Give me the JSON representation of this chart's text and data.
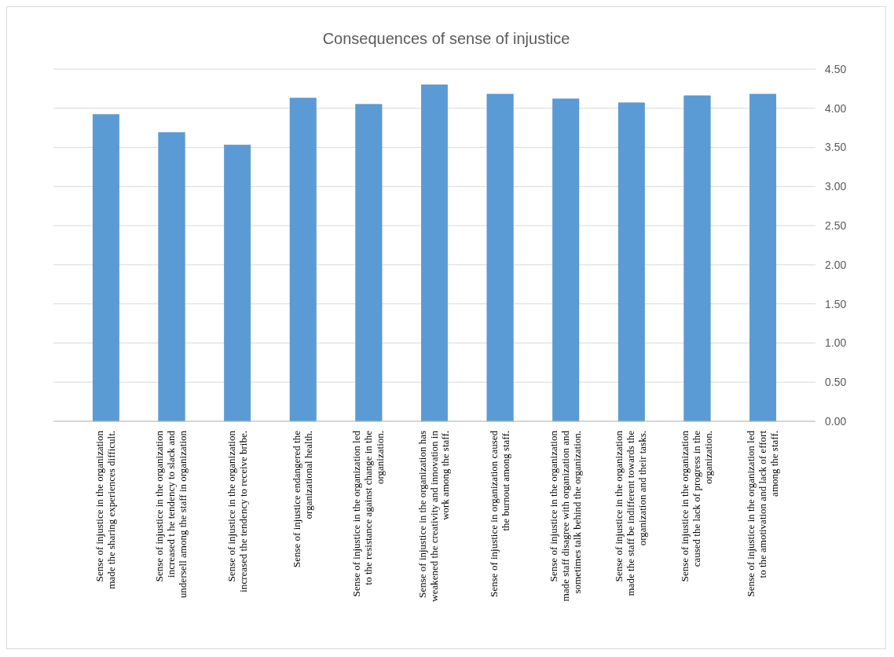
{
  "chart_data": {
    "type": "bar",
    "title": "Consequences of sense of injustice",
    "categories": [
      "Sense of injustice in the organization made the sharing experiences difficult.",
      "Sense of injustice in the organization increased t he tendency to slack and undersell among the staff in organization",
      "Sense of injustice in the organization increased the tendency to receive bribe.",
      "Sense of injustice endangered the organizational health.",
      "Sense of injustice in the organization led to the resistance against  change in the organization.",
      "Sense of injustice in the organization has weakened the creativity and innovation in work among the staff.",
      "Sense of injustice in organization caused the burnout  among staff.",
      "Sense of injustice in the organization made staff disagree with organization and sometimes talk behind the organization.",
      "Sense of injustice in the organization made the staff be indifferent towards the organization and their tasks.",
      "Sense of injustice in the organization caused the lack of progress in the organization.",
      "Sense of injustice in the organization led to the amotivation and lack of effort among the staff."
    ],
    "values": [
      3.92,
      3.69,
      3.53,
      4.13,
      4.05,
      4.3,
      4.18,
      4.12,
      4.07,
      4.16,
      4.18
    ],
    "color": "#5b9bd5",
    "ylim": [
      0,
      4.5
    ],
    "yticks": [
      {
        "value": 0,
        "label": "0.00"
      },
      {
        "value": 0.5,
        "label": "0.50"
      },
      {
        "value": 1,
        "label": "1.00"
      },
      {
        "value": 1.5,
        "label": "1.50"
      },
      {
        "value": 2,
        "label": "2.00"
      },
      {
        "value": 2.5,
        "label": "2.50"
      },
      {
        "value": 3,
        "label": "3.00"
      },
      {
        "value": 3.5,
        "label": "3.50"
      },
      {
        "value": 4,
        "label": "4.00"
      },
      {
        "value": 4.5,
        "label": "4.50"
      }
    ],
    "grid": "y"
  }
}
